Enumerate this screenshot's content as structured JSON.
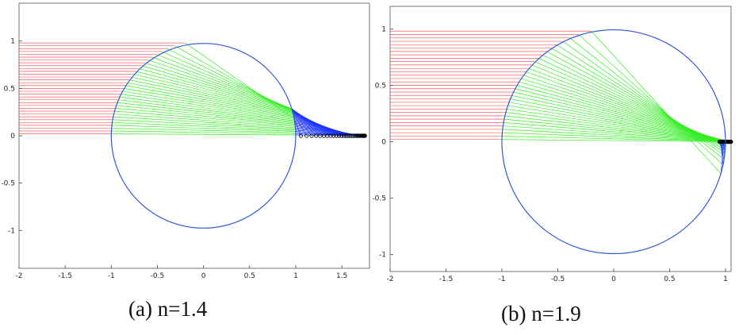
{
  "chart_data": [
    {
      "type": "line",
      "title": "",
      "caption": "(a)  n=1.4",
      "n": 1.4,
      "xlim": [
        -2,
        1.8
      ],
      "ylim": [
        -1.4,
        1.4
      ],
      "xticks": [
        -2,
        -1.5,
        -1,
        -0.5,
        0,
        0.5,
        1,
        1.5
      ],
      "xtick_labels": [
        "-2",
        "-1.5",
        "-1",
        "-0.5",
        "0",
        "0.5",
        "1",
        "1.5"
      ],
      "yticks": [
        -1,
        -0.5,
        0,
        0.5,
        1
      ],
      "ytick_labels": [
        "-1",
        "-0.5",
        "0",
        "0.5",
        "1"
      ],
      "circle": {
        "center": [
          0,
          0
        ],
        "radius": 1
      },
      "incident_ray_heights": [
        0.02,
        0.05,
        0.08,
        0.11,
        0.14,
        0.17,
        0.2,
        0.23,
        0.26,
        0.29,
        0.32,
        0.35,
        0.38,
        0.41,
        0.44,
        0.47,
        0.5,
        0.53,
        0.56,
        0.59,
        0.62,
        0.65,
        0.68,
        0.71,
        0.74,
        0.77,
        0.8,
        0.83,
        0.86,
        0.89,
        0.92,
        0.95,
        0.98
      ],
      "incident_start_x": -2,
      "colors": {
        "incident": "#ff5a5a",
        "refracted": "#33ee22",
        "exit": "#1a33ff",
        "circle": "#3355dd",
        "focus": "#000000"
      }
    },
    {
      "type": "line",
      "title": "",
      "caption": "(b)  n=1.9",
      "n": 1.9,
      "xlim": [
        -2,
        1.05
      ],
      "ylim": [
        -1.15,
        1.2
      ],
      "xticks": [
        -2,
        -1.5,
        -1,
        -0.5,
        0,
        0.5,
        1
      ],
      "xtick_labels": [
        "-2",
        "-1.5",
        "-1",
        "-0.5",
        "0",
        "0.5",
        "1"
      ],
      "yticks": [
        -1,
        -0.5,
        0,
        0.5,
        1
      ],
      "ytick_labels": [
        "-1",
        "-0.5",
        "0",
        "0.5",
        "1"
      ],
      "circle": {
        "center": [
          0,
          0
        ],
        "radius": 1
      },
      "incident_ray_heights": [
        0.02,
        0.05,
        0.08,
        0.11,
        0.14,
        0.17,
        0.2,
        0.23,
        0.26,
        0.29,
        0.32,
        0.35,
        0.38,
        0.41,
        0.44,
        0.47,
        0.5,
        0.53,
        0.56,
        0.59,
        0.62,
        0.65,
        0.68,
        0.71,
        0.74,
        0.77,
        0.8,
        0.83,
        0.86,
        0.89,
        0.92,
        0.95,
        0.98
      ],
      "incident_start_x": -2,
      "colors": {
        "incident": "#ff5a5a",
        "refracted": "#33ee22",
        "exit": "#1a33ff",
        "circle": "#3355dd",
        "focus": "#000000"
      }
    }
  ]
}
